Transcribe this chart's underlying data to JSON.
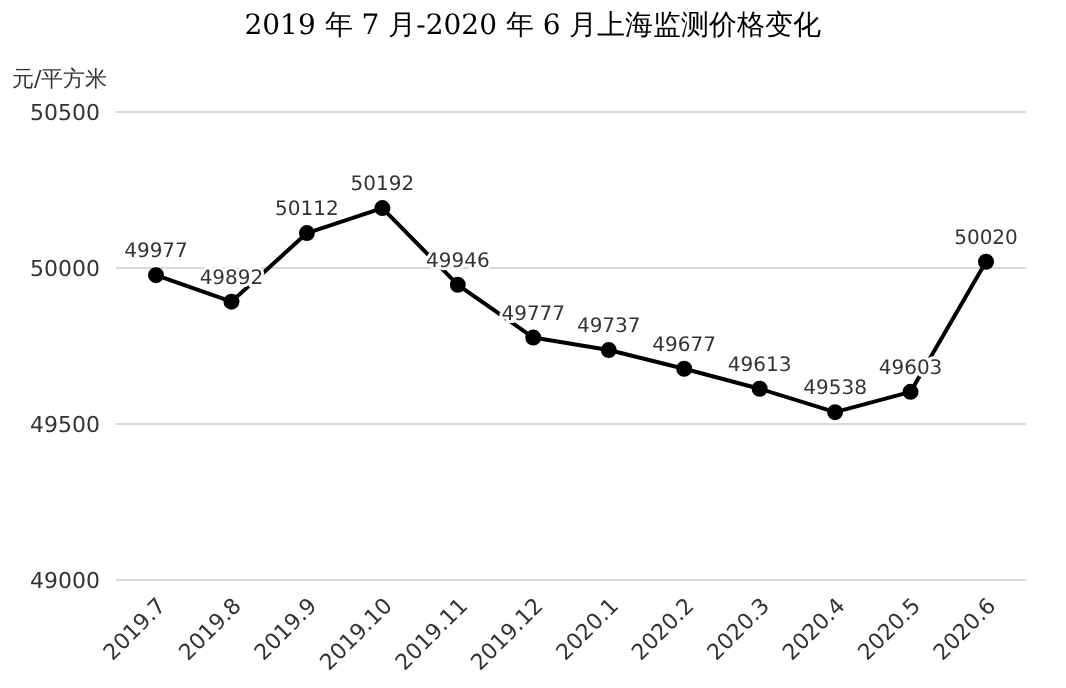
{
  "chart_data": {
    "type": "line",
    "title": "2019 年 7 月-2020 年 6 月上海监测价格变化",
    "ylabel": "元/平方米",
    "categories": [
      "2019.7",
      "2019.8",
      "2019.9",
      "2019.10",
      "2019.11",
      "2019.12",
      "2020.1",
      "2020.2",
      "2020.3",
      "2020.4",
      "2020.5",
      "2020.6"
    ],
    "values": [
      49977,
      49892,
      50112,
      50192,
      49946,
      49777,
      49737,
      49677,
      49613,
      49538,
      49603,
      50020
    ],
    "color": "#000000",
    "ylim": [
      49000,
      50500
    ],
    "yticks": [
      49000,
      49500,
      50000,
      50500
    ],
    "grid": "y",
    "marker": "circle",
    "line_style": "solid",
    "data_labels": true
  }
}
